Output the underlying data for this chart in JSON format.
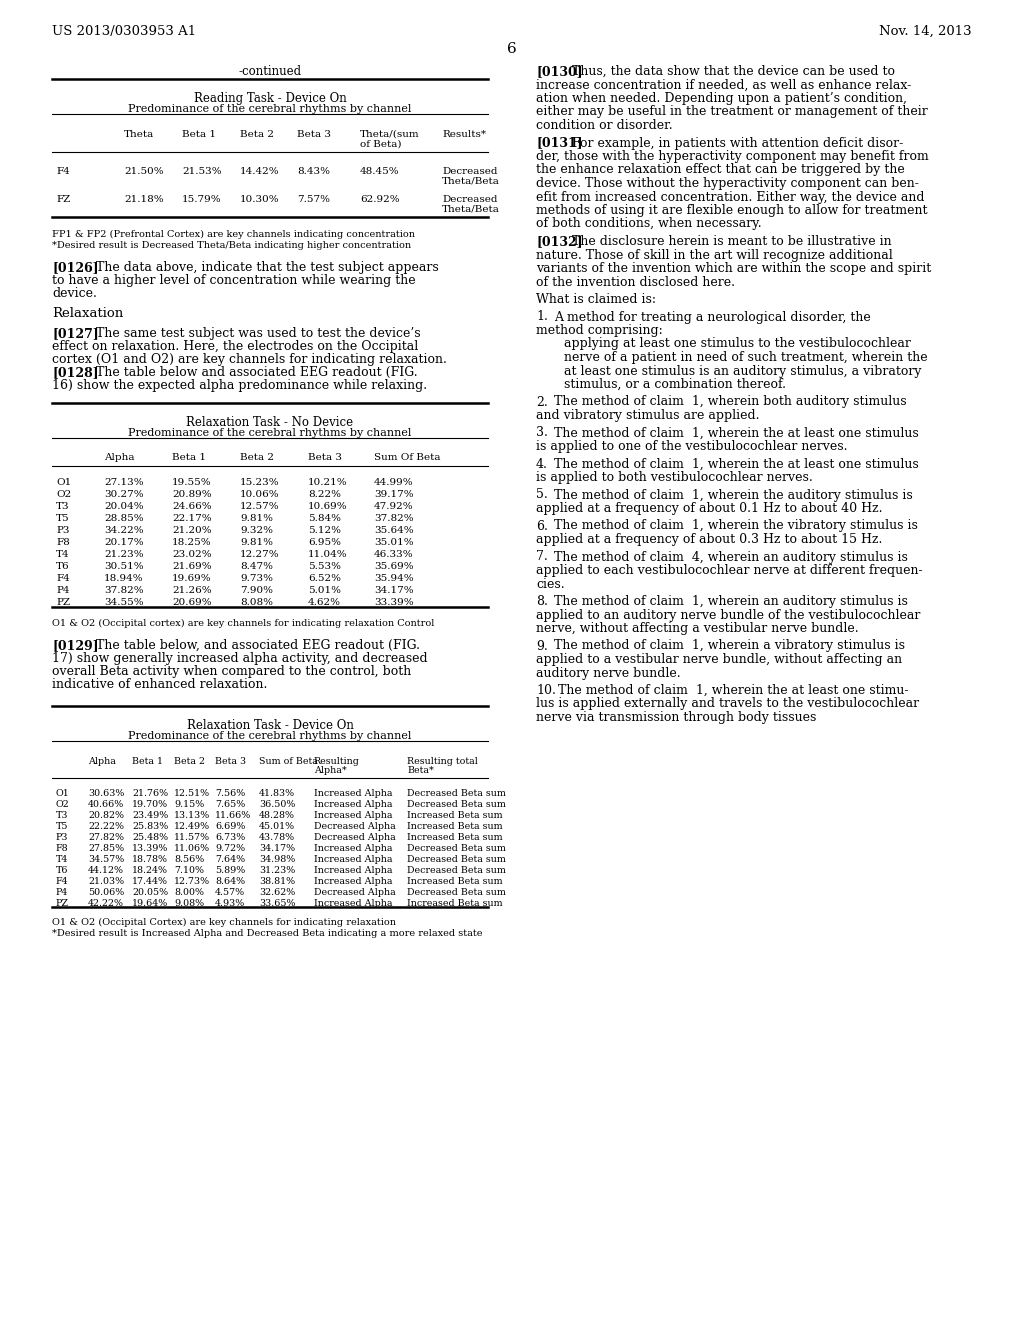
{
  "bg_color": "#ffffff",
  "header_left": "US 2013/0303953 A1",
  "header_right": "Nov. 14, 2013",
  "page_number": "6",
  "table1_continued": "-continued",
  "table1_title1": "Reading Task - Device On",
  "table1_title2": "Predominance of the cerebral rhythms by channel",
  "table1_footnote1": "FP1 & FP2 (Prefrontal Cortex) are key channels indicating concentration",
  "table1_footnote2": "*Desired result is Decreased Theta/Beta indicating higher concentration",
  "table2_title1": "Relaxation Task - No Device",
  "table2_title2": "Predominance of the cerebral rhythms by channel",
  "table2_footnote": "O1 & O2 (Occipital cortex) are key channels for indicating relaxation Control",
  "table3_title1": "Relaxation Task - Device On",
  "table3_title2": "Predominance of the cerebral rhythms by channel",
  "table3_footnote1": "O1 & O2 (Occipital Cortex) are key channels for indicating relaxation",
  "table3_footnote2": "*Desired result is Increased Alpha and Decreased Beta indicating a more relaxed state"
}
